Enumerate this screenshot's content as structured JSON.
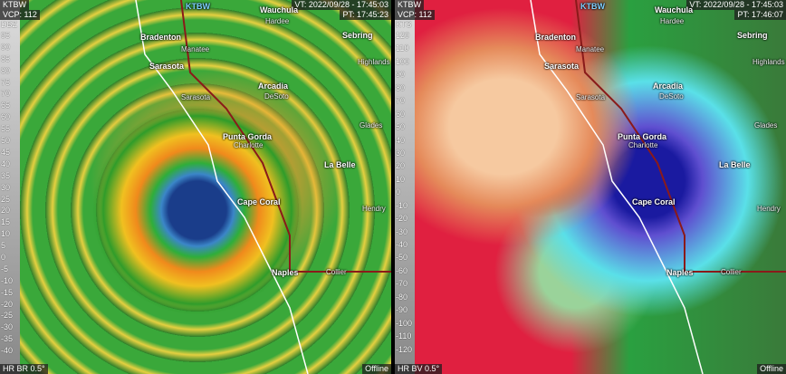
{
  "panels": [
    {
      "station": "KTBW",
      "vcp": "VCP: 112",
      "vt": "VT: 2022/09/28 - 17:45:03",
      "pt": "PT: 17:45:23",
      "site": "KTBW",
      "scale_unit": "DBZ",
      "scale": [
        95,
        90,
        85,
        80,
        75,
        70,
        65,
        60,
        55,
        50,
        45,
        40,
        35,
        30,
        25,
        20,
        15,
        10,
        5,
        0,
        -5,
        -10,
        -15,
        -20,
        -25,
        -30,
        -35,
        -40
      ],
      "product": "HR BR 0.5°",
      "status": "Offline",
      "places": [
        "Bradenton",
        "Manatee",
        "Sarasota",
        "Wauchula",
        "Hardee",
        "Sebring",
        "Highlands",
        "Arcadia",
        "DeSoto",
        "Sarasota",
        "Glades",
        "Punta Gorda",
        "Charlotte",
        "La Belle",
        "Cape Coral",
        "Hendry",
        "Naples",
        "Collier"
      ]
    },
    {
      "station": "KTBW",
      "vcp": "VCP: 112",
      "vt": "VT: 2022/09/28 - 17:45:03",
      "pt": "PT: 17:46:07",
      "site": "KTBW",
      "scale_unit": "KTS",
      "scale": [
        120,
        110,
        100,
        90,
        80,
        70,
        60,
        50,
        40,
        30,
        20,
        10,
        0,
        -10,
        -20,
        -30,
        -40,
        -50,
        -60,
        -70,
        -80,
        -90,
        -100,
        -110,
        -120
      ],
      "product": "HR BV 0.5°",
      "status": "Offline",
      "places": [
        "Bradenton",
        "Manatee",
        "Sarasota",
        "Wauchula",
        "Hardee",
        "Sebring",
        "Highlands",
        "Arcadia",
        "DeSoto",
        "Sarasota",
        "Glades",
        "Punta Gorda",
        "Charlotte",
        "La Belle",
        "Cape Coral",
        "Hendry",
        "Naples",
        "Collier"
      ]
    }
  ]
}
